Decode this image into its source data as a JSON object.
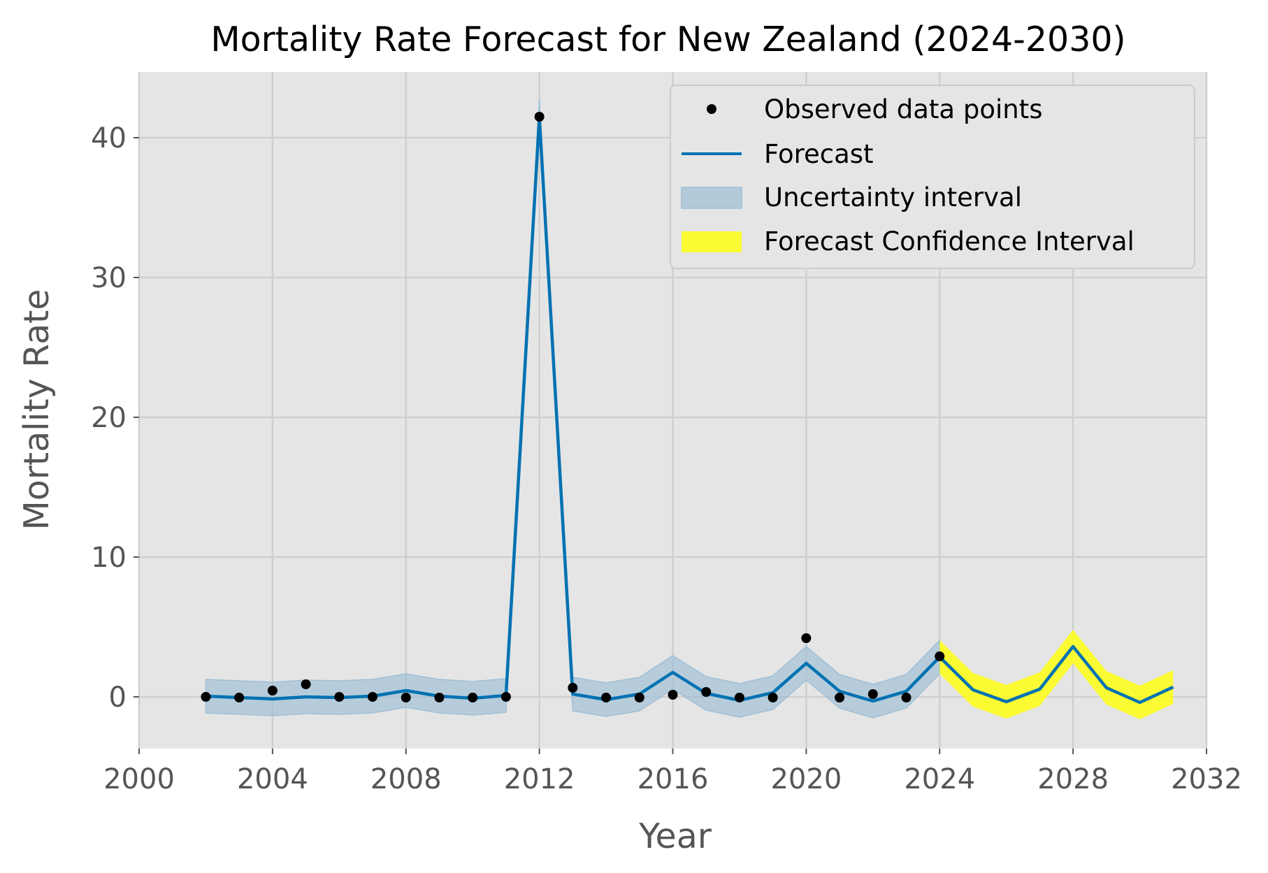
{
  "chart_data": {
    "type": "line",
    "title": "Mortality Rate Forecast for New Zealand (2024-2030)",
    "xlabel": "Year",
    "ylabel": "Mortality Rate",
    "xlim": [
      2000,
      2032
    ],
    "ylim": [
      -3.7,
      44.7
    ],
    "x_ticks": [
      2000,
      2004,
      2008,
      2012,
      2016,
      2020,
      2024,
      2028,
      2032
    ],
    "y_ticks": [
      0,
      10,
      20,
      30,
      40
    ],
    "grid": true,
    "legend_position": "top-right",
    "colors": {
      "plot_background": "#e5e5e5",
      "grid": "#cfcfcf",
      "observed": "#000000",
      "forecast": "#0072b2",
      "uncertainty": "#9ebfd6",
      "forecast_ci": "#ffff14"
    },
    "observed": {
      "name": "Observed data points",
      "x": [
        2002,
        2003,
        2004,
        2005,
        2006,
        2007,
        2008,
        2009,
        2010,
        2011,
        2012,
        2013,
        2014,
        2015,
        2016,
        2017,
        2018,
        2019,
        2020,
        2021,
        2022,
        2023,
        2024
      ],
      "y": [
        0.0,
        -0.05,
        0.45,
        0.9,
        0.0,
        0.0,
        -0.05,
        -0.05,
        -0.05,
        0.0,
        41.5,
        0.65,
        -0.05,
        -0.05,
        0.15,
        0.35,
        -0.05,
        -0.05,
        4.2,
        -0.05,
        0.2,
        -0.05,
        2.9
      ]
    },
    "forecast": {
      "name": "Forecast",
      "x": [
        2002,
        2003,
        2004,
        2005,
        2006,
        2007,
        2008,
        2009,
        2010,
        2011,
        2012,
        2013,
        2014,
        2015,
        2016,
        2017,
        2018,
        2019,
        2020,
        2021,
        2022,
        2023,
        2024,
        2025,
        2026,
        2027,
        2028,
        2029,
        2030,
        2031
      ],
      "y": [
        0.05,
        -0.05,
        -0.15,
        0.0,
        -0.05,
        0.05,
        0.45,
        0.05,
        -0.1,
        0.1,
        41.5,
        0.2,
        -0.2,
        0.2,
        1.75,
        0.25,
        -0.25,
        0.3,
        2.4,
        0.4,
        -0.3,
        0.4,
        2.85,
        0.5,
        -0.35,
        0.55,
        3.6,
        0.65,
        -0.4,
        0.7
      ]
    },
    "uncertainty_interval": {
      "name": "Uncertainty interval",
      "x": [
        2002,
        2003,
        2004,
        2005,
        2006,
        2007,
        2008,
        2009,
        2010,
        2011,
        2012,
        2013,
        2014,
        2015,
        2016,
        2017,
        2018,
        2019,
        2020,
        2021,
        2022,
        2023,
        2024
      ],
      "lower": [
        -1.15,
        -1.25,
        -1.35,
        -1.2,
        -1.25,
        -1.15,
        -0.75,
        -1.15,
        -1.3,
        -1.1,
        40.3,
        -1.0,
        -1.4,
        -1.0,
        0.55,
        -0.95,
        -1.45,
        -0.9,
        1.2,
        -0.8,
        -1.5,
        -0.8,
        1.65
      ],
      "upper": [
        1.25,
        1.15,
        1.05,
        1.2,
        1.15,
        1.25,
        1.65,
        1.25,
        1.1,
        1.3,
        42.7,
        1.4,
        1.0,
        1.4,
        2.95,
        1.45,
        0.95,
        1.5,
        3.6,
        1.6,
        0.9,
        1.6,
        4.05
      ]
    },
    "forecast_ci": {
      "name": "Forecast Confidence Interval",
      "x": [
        2024,
        2025,
        2026,
        2027,
        2028,
        2029,
        2030,
        2031
      ],
      "lower": [
        1.65,
        -0.7,
        -1.55,
        -0.65,
        2.4,
        -0.55,
        -1.6,
        -0.5
      ],
      "upper": [
        4.05,
        1.7,
        0.85,
        1.75,
        4.8,
        1.85,
        0.8,
        1.9
      ]
    }
  }
}
